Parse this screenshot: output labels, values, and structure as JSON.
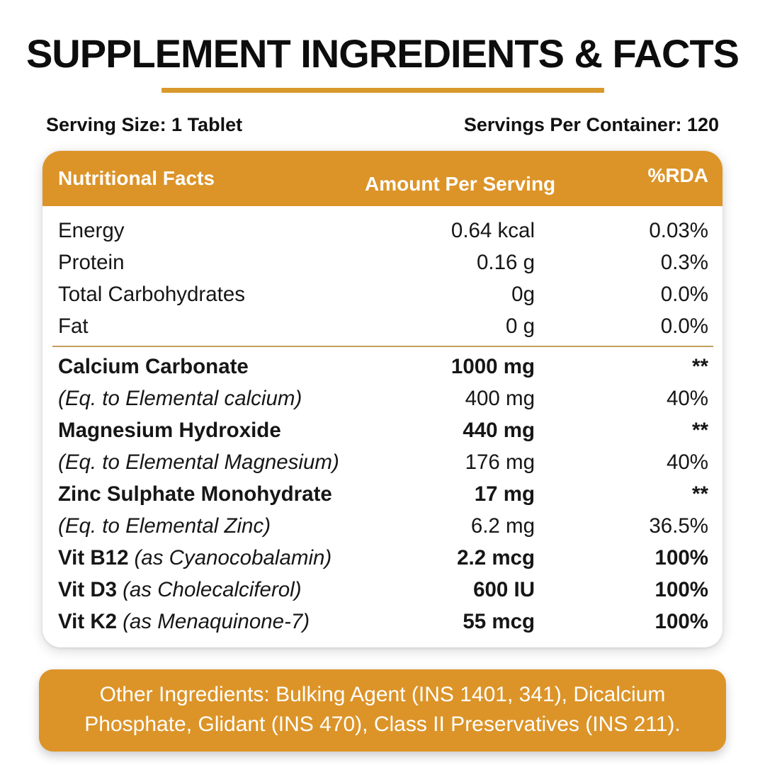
{
  "header": {
    "title": "SUPPLEMENT INGREDIENTS & FACTS",
    "serving_size": "Serving Size: 1 Tablet",
    "servings_per_container": "Servings Per Container: 120"
  },
  "colors": {
    "accent_orange": "#DC9428",
    "underline_gold": "#D9992D",
    "divider_gold": "#C2A05E",
    "text_black": "#161616",
    "header_text_white": "#FFFFFF"
  },
  "table": {
    "columns": [
      "Nutritional Facts",
      "Amount Per Serving",
      "%RDA"
    ],
    "rows": [
      {
        "name": "Energy",
        "note": "",
        "amount": "0.64 kcal",
        "rda": "0.03%",
        "emphasis": "normal",
        "divider_after": false
      },
      {
        "name": "Protein",
        "note": "",
        "amount": "0.16 g",
        "rda": "0.3%",
        "emphasis": "normal",
        "divider_after": false
      },
      {
        "name": "Total Carbohydrates",
        "note": "",
        "amount": "0g",
        "rda": "0.0%",
        "emphasis": "normal",
        "divider_after": false
      },
      {
        "name": "Fat",
        "note": "",
        "amount": "0 g",
        "rda": "0.0%",
        "emphasis": "normal",
        "divider_after": true
      },
      {
        "name": "Calcium Carbonate",
        "note": "",
        "amount": "1000 mg",
        "rda": "**",
        "emphasis": "bold",
        "divider_after": false
      },
      {
        "name": "",
        "note": "(Eq. to Elemental calcium)",
        "amount": "400 mg",
        "rda": "40%",
        "emphasis": "normal",
        "divider_after": false
      },
      {
        "name": "Magnesium Hydroxide",
        "note": "",
        "amount": "440 mg",
        "rda": "**",
        "emphasis": "bold",
        "divider_after": false
      },
      {
        "name": "",
        "note": "(Eq. to Elemental Magnesium)",
        "amount": "176 mg",
        "rda": "40%",
        "emphasis": "normal",
        "divider_after": false
      },
      {
        "name": "Zinc Sulphate Monohydrate",
        "note": "",
        "amount": "17 mg",
        "rda": "**",
        "emphasis": "bold",
        "divider_after": false
      },
      {
        "name": "",
        "note": "(Eq. to Elemental Zinc)",
        "amount": "6.2 mg",
        "rda": "36.5%",
        "emphasis": "normal",
        "divider_after": false
      },
      {
        "name": "Vit B12",
        "note": "(as Cyanocobalamin)",
        "amount": "2.2 mcg",
        "rda": "100%",
        "emphasis": "bold",
        "divider_after": false
      },
      {
        "name": "Vit D3",
        "note": "(as Cholecalciferol)",
        "amount": "600 IU",
        "rda": "100%",
        "emphasis": "bold",
        "divider_after": false
      },
      {
        "name": "Vit K2",
        "note": "(as Menaquinone-7)",
        "amount": "55 mcg",
        "rda": "100%",
        "emphasis": "bold",
        "divider_after": false
      }
    ]
  },
  "other_ingredients": "Other Ingredients: Bulking Agent (INS 1401, 341), Dicalcium Phosphate, Glidant (INS 470), Class II Preservatives (INS 211)."
}
